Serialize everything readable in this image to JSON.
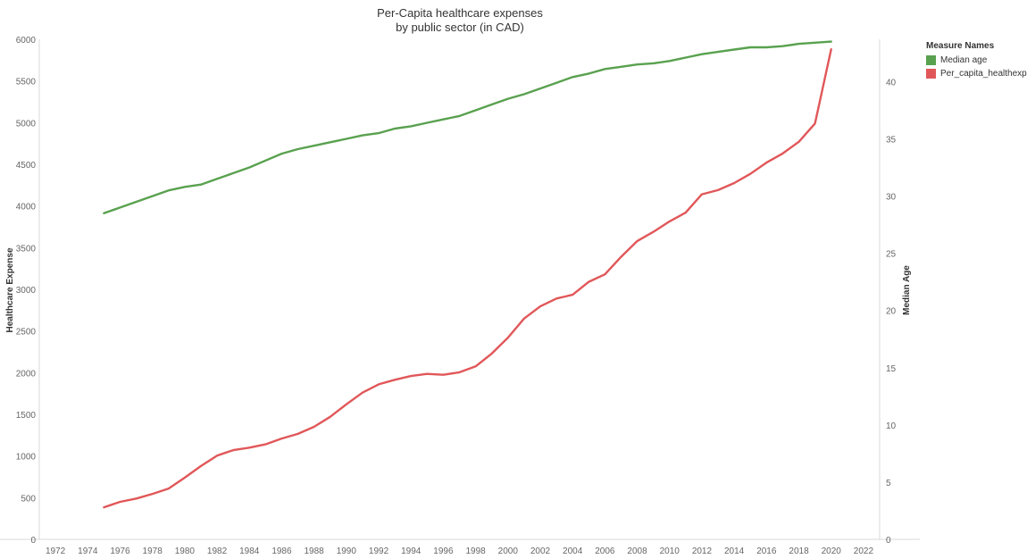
{
  "chart_data": {
    "type": "line",
    "title": "Per-Capita healthcare expenses",
    "subtitle": "by public sector (in CAD)",
    "y_left_label": "Healthcare Expense",
    "y_right_label": "Median Age",
    "x_ticks": [
      "1972",
      "1974",
      "1976",
      "1978",
      "1980",
      "1982",
      "1984",
      "1986",
      "1988",
      "1990",
      "1992",
      "1994",
      "1996",
      "1998",
      "2000",
      "2002",
      "2004",
      "2006",
      "2008",
      "2010",
      "2012",
      "2014",
      "2016",
      "2018",
      "2020",
      "2022"
    ],
    "y_left_ticks": [
      "0",
      "500",
      "1000",
      "1500",
      "2000",
      "2500",
      "3000",
      "3500",
      "4000",
      "4500",
      "5000",
      "5500",
      "6000"
    ],
    "y_right_ticks": [
      "0",
      "5",
      "10",
      "15",
      "20",
      "25",
      "30",
      "35",
      "40"
    ],
    "xlim": [
      1971,
      2023
    ],
    "ylim_left": [
      0,
      6000
    ],
    "ylim_right": [
      0,
      43.7
    ],
    "legend": {
      "title": "Measure Names",
      "position": "right",
      "items": [
        {
          "name": "Median age",
          "color": "#59a14f"
        },
        {
          "name": "Per_capita_healthexp",
          "color": "#e15759"
        }
      ]
    },
    "x": [
      1975,
      1976,
      1977,
      1978,
      1979,
      1980,
      1981,
      1982,
      1983,
      1984,
      1985,
      1986,
      1987,
      1988,
      1989,
      1990,
      1991,
      1992,
      1993,
      1994,
      1995,
      1996,
      1997,
      1998,
      1999,
      2000,
      2001,
      2002,
      2003,
      2004,
      2005,
      2006,
      2007,
      2008,
      2009,
      2010,
      2011,
      2012,
      2013,
      2014,
      2015,
      2016,
      2017,
      2018,
      2019,
      2020
    ],
    "series": [
      {
        "name": "Median age",
        "axis": "right",
        "color": "#59a14f",
        "values": [
          28.5,
          29.0,
          29.5,
          30.0,
          30.5,
          30.8,
          31.0,
          31.5,
          32.0,
          32.5,
          33.1,
          33.7,
          34.1,
          34.4,
          34.7,
          35.0,
          35.3,
          35.5,
          35.9,
          36.1,
          36.4,
          36.7,
          37.0,
          37.5,
          38.0,
          38.5,
          38.9,
          39.4,
          39.9,
          40.4,
          40.7,
          41.1,
          41.3,
          41.5,
          41.6,
          41.8,
          42.1,
          42.4,
          42.6,
          42.8,
          43.0,
          43.0,
          43.1,
          43.3,
          43.4,
          43.5
        ]
      },
      {
        "name": "Per_capita_healthexp",
        "axis": "left",
        "color": "#e15759",
        "values": [
          385,
          450,
          490,
          545,
          610,
          740,
          880,
          1005,
          1070,
          1100,
          1140,
          1210,
          1265,
          1350,
          1470,
          1620,
          1760,
          1860,
          1915,
          1960,
          1985,
          1975,
          2005,
          2075,
          2230,
          2420,
          2650,
          2795,
          2890,
          2935,
          3090,
          3180,
          3390,
          3580,
          3690,
          3815,
          3920,
          4140,
          4190,
          4275,
          4385,
          4520,
          4630,
          4770,
          4990,
          5880
        ]
      }
    ]
  }
}
